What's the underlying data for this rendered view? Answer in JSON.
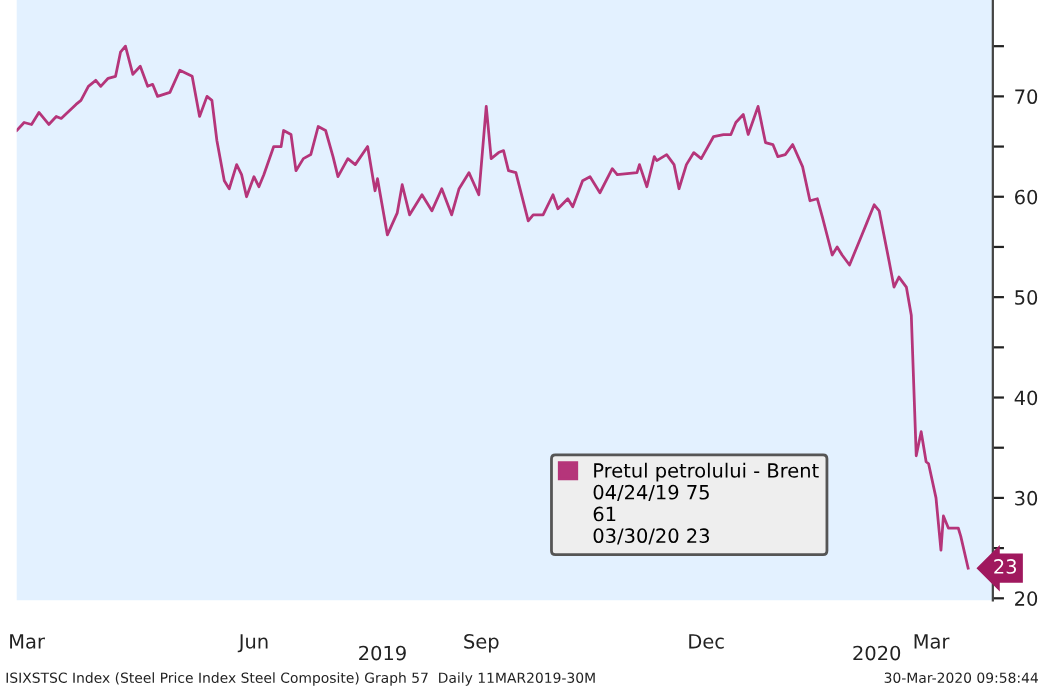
{
  "chart_data": {
    "type": "line",
    "x": [
      "2019-03-11",
      "2019-03-14",
      "2019-03-17",
      "2019-03-20",
      "2019-03-24",
      "2019-03-27",
      "2019-03-29",
      "2019-04-04",
      "2019-04-06",
      "2019-04-09",
      "2019-04-12",
      "2019-04-14",
      "2019-04-17",
      "2019-04-20",
      "2019-04-22",
      "2019-04-24",
      "2019-04-27",
      "2019-04-30",
      "2019-05-03",
      "2019-05-05",
      "2019-05-07",
      "2019-05-12",
      "2019-05-16",
      "2019-05-21",
      "2019-05-24",
      "2019-05-27",
      "2019-05-29",
      "2019-05-31",
      "2019-06-03",
      "2019-06-05",
      "2019-06-08",
      "2019-06-10",
      "2019-06-12",
      "2019-06-15",
      "2019-06-17",
      "2019-06-19",
      "2019-06-23",
      "2019-06-26",
      "2019-06-27",
      "2019-06-30",
      "2019-07-02",
      "2019-07-05",
      "2019-07-08",
      "2019-07-11",
      "2019-07-14",
      "2019-07-17",
      "2019-07-19",
      "2019-07-23",
      "2019-07-26",
      "2019-07-31",
      "2019-08-03",
      "2019-08-04",
      "2019-08-08",
      "2019-08-12",
      "2019-08-14",
      "2019-08-17",
      "2019-08-22",
      "2019-08-26",
      "2019-08-30",
      "2019-09-03",
      "2019-09-06",
      "2019-09-10",
      "2019-09-14",
      "2019-09-17",
      "2019-09-19",
      "2019-09-22",
      "2019-09-24",
      "2019-09-26",
      "2019-09-29",
      "2019-10-04",
      "2019-10-06",
      "2019-10-10",
      "2019-10-14",
      "2019-10-16",
      "2019-10-20",
      "2019-10-22",
      "2019-10-26",
      "2019-10-29",
      "2019-11-02",
      "2019-11-07",
      "2019-11-09",
      "2019-11-17",
      "2019-11-18",
      "2019-11-21",
      "2019-11-24",
      "2019-11-25",
      "2019-11-29",
      "2019-12-02",
      "2019-12-04",
      "2019-12-07",
      "2019-12-10",
      "2019-12-13",
      "2019-12-18",
      "2019-12-22",
      "2019-12-25",
      "2019-12-27",
      "2019-12-30",
      "2020-01-01",
      "2020-01-03",
      "2020-01-05",
      "2020-01-08",
      "2020-01-11",
      "2020-01-13",
      "2020-01-16",
      "2020-01-19",
      "2020-01-23",
      "2020-01-26",
      "2020-01-29",
      "2020-01-31",
      "2020-02-04",
      "2020-02-06",
      "2020-02-08",
      "2020-02-11",
      "2020-02-16",
      "2020-02-18",
      "2020-02-19",
      "2020-02-21",
      "2020-02-23",
      "2020-02-27",
      "2020-02-29",
      "2020-03-02",
      "2020-03-05",
      "2020-03-07",
      "2020-03-09",
      "2020-03-11",
      "2020-03-13",
      "2020-03-14",
      "2020-03-17",
      "2020-03-19",
      "2020-03-20",
      "2020-03-22",
      "2020-03-26",
      "2020-03-27",
      "2020-03-30"
    ],
    "series": [
      {
        "name": "Pretul petrolului - Brent",
        "color": "#b5357a",
        "values": [
          66.6,
          67.4,
          67.2,
          68.4,
          67.2,
          68,
          67.8,
          69.2,
          69.6,
          71,
          71.6,
          71,
          71.8,
          72,
          74.4,
          75,
          72.2,
          73,
          71,
          71.2,
          70,
          70.4,
          72.6,
          72,
          68,
          70,
          69.6,
          65.6,
          61.6,
          60.8,
          63.2,
          62.2,
          60,
          62,
          61,
          62.2,
          65,
          65,
          66.6,
          66.2,
          62.6,
          63.8,
          64.2,
          67,
          66.6,
          64,
          62,
          63.8,
          63.2,
          65,
          60.6,
          61.8,
          56.2,
          58.4,
          61.2,
          58.2,
          60.2,
          58.6,
          60.8,
          58.2,
          60.8,
          62.4,
          60.2,
          69,
          63.8,
          64.4,
          64.6,
          62.6,
          62.4,
          57.6,
          58.2,
          58.2,
          60.2,
          58.8,
          59.8,
          59,
          61.6,
          62,
          60.4,
          62.8,
          62.2,
          62.4,
          63.2,
          61,
          64,
          63.6,
          64.2,
          63.2,
          60.8,
          63.2,
          64.4,
          63.8,
          66,
          66.2,
          66.2,
          67.4,
          68.2,
          66.2,
          67.6,
          69,
          65.4,
          65.2,
          64,
          64.2,
          65.2,
          63,
          59.6,
          59.8,
          58,
          54.2,
          55,
          54.2,
          53.2,
          56.2,
          57.4,
          58,
          59.2,
          58.6,
          53.6,
          51,
          52,
          51,
          48.2,
          34.2,
          36.6,
          33.6,
          33.4,
          30,
          24.8,
          28.2,
          27,
          27,
          26.2,
          23
        ]
      }
    ],
    "xlim": [
      "2019-03-11",
      "2020-04-09"
    ],
    "xticks": [
      {
        "value": "2019-03-15",
        "label": "Mar"
      },
      {
        "value": "2019-06-15",
        "label": "Jun"
      },
      {
        "value": "2019-09-15",
        "label": "Sep"
      },
      {
        "value": "2019-12-15",
        "label": "Dec"
      },
      {
        "value": "2020-03-15",
        "label": "Mar"
      }
    ],
    "x2lim": [
      "2019-03-11",
      "2020-04-09"
    ],
    "x2ticks": [
      {
        "value": "2019-08-06",
        "label": "2019"
      },
      {
        "value": "2020-02-22",
        "label": "2020"
      }
    ],
    "ylim": [
      19.8,
      79.6
    ],
    "yticks": [
      20,
      {
        "value": 25,
        "label": null
      },
      30,
      {
        "value": 35,
        "label": null
      },
      40,
      {
        "value": 45,
        "label": null
      },
      50,
      {
        "value": 55,
        "label": null
      },
      60,
      {
        "value": 65,
        "label": null
      },
      70,
      {
        "value": 75,
        "label": null
      }
    ],
    "legend": "bottom right",
    "grid": false,
    "annotations": [
      "04/24/19 75",
      "61",
      "03/30/20 23",
      {
        "text": "23",
        "x": "2020-03-30",
        "y": 23
      },
      "ISIXSTSC Index (Steel Price Index Steel Composite) Graph 57  Daily 11MAR2019-30M",
      "30-Mar-2020 09:58:44"
    ]
  }
}
